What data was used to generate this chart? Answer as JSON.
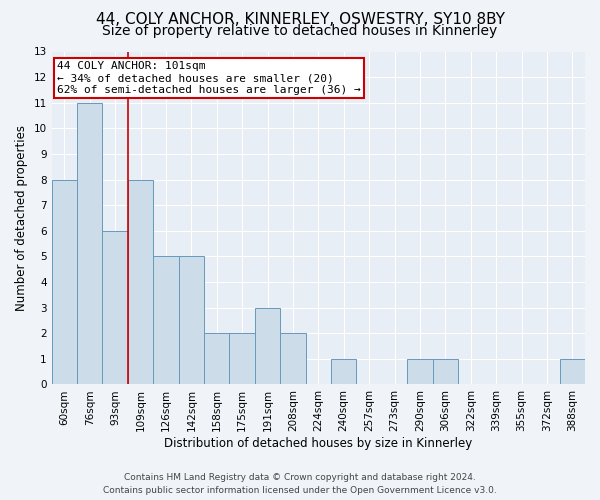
{
  "title_line1": "44, COLY ANCHOR, KINNERLEY, OSWESTRY, SY10 8BY",
  "title_line2": "Size of property relative to detached houses in Kinnerley",
  "xlabel": "Distribution of detached houses by size in Kinnerley",
  "ylabel": "Number of detached properties",
  "categories": [
    "60sqm",
    "76sqm",
    "93sqm",
    "109sqm",
    "126sqm",
    "142sqm",
    "158sqm",
    "175sqm",
    "191sqm",
    "208sqm",
    "224sqm",
    "240sqm",
    "257sqm",
    "273sqm",
    "290sqm",
    "306sqm",
    "322sqm",
    "339sqm",
    "355sqm",
    "372sqm",
    "388sqm"
  ],
  "values": [
    8,
    11,
    6,
    8,
    5,
    5,
    2,
    2,
    3,
    2,
    0,
    1,
    0,
    0,
    1,
    1,
    0,
    0,
    0,
    0,
    1
  ],
  "bar_color": "#ccdce8",
  "bar_edge_color": "#6699bb",
  "red_line_x": 2.5,
  "annotation_text_line1": "44 COLY ANCHOR: 101sqm",
  "annotation_text_line2": "← 34% of detached houses are smaller (20)",
  "annotation_text_line3": "62% of semi-detached houses are larger (36) →",
  "annotation_box_facecolor": "#ffffff",
  "annotation_box_edgecolor": "#cc0000",
  "ylim_min": 0,
  "ylim_max": 13,
  "yticks": [
    0,
    1,
    2,
    3,
    4,
    5,
    6,
    7,
    8,
    9,
    10,
    11,
    12,
    13
  ],
  "footer_line1": "Contains HM Land Registry data © Crown copyright and database right 2024.",
  "footer_line2": "Contains public sector information licensed under the Open Government Licence v3.0.",
  "fig_bg_color": "#f0f4f8",
  "ax_bg_color": "#e8eef5",
  "grid_color": "#ffffff",
  "title1_fontsize": 11,
  "title2_fontsize": 10,
  "axis_label_fontsize": 8.5,
  "tick_fontsize": 7.5,
  "annotation_fontsize": 8,
  "footer_fontsize": 6.5
}
